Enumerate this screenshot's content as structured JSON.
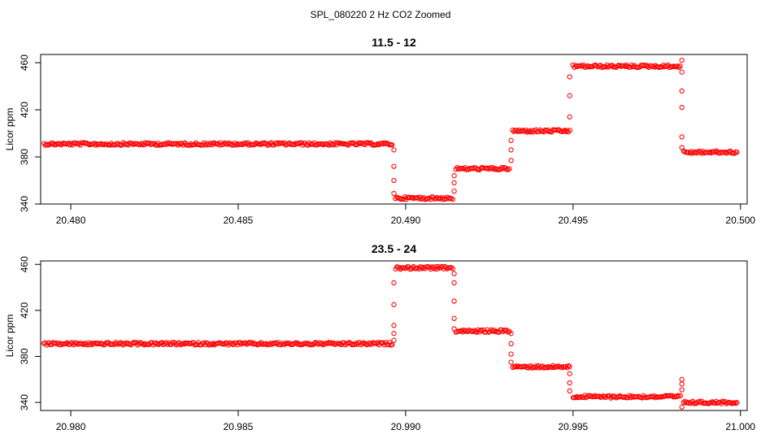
{
  "supertitle": "SPL_080220  2 Hz CO2 Zoomed",
  "chart_data": [
    {
      "type": "scatter",
      "title": "11.5 - 12",
      "xlabel": "",
      "ylabel": "Licor ppm",
      "xlim": [
        20.4791,
        20.5002
      ],
      "ylim": [
        340,
        467
      ],
      "xticks": [
        20.48,
        20.485,
        20.49,
        20.495,
        20.5
      ],
      "xtick_labels": [
        "20.480",
        "20.485",
        "20.490",
        "20.495",
        "20.500"
      ],
      "yticks": [
        340,
        380,
        420,
        460
      ],
      "ytick_labels": [
        "340",
        "380",
        "420",
        "460"
      ],
      "grid": false,
      "color": "#ff0000",
      "marker": "open-circle",
      "series": [
        {
          "levels": [
            {
              "x_start": 20.4792,
              "x_end": 20.4896,
              "y": 391
            },
            {
              "x_start": 20.4897,
              "x_end": 20.4914,
              "y": 345
            },
            {
              "x_start": 20.4915,
              "x_end": 20.4931,
              "y": 370
            },
            {
              "x_start": 20.4932,
              "x_end": 20.4949,
              "y": 402
            },
            {
              "x_start": 20.495,
              "x_end": 20.4982,
              "y": 457
            },
            {
              "x_start": 20.4983,
              "x_end": 20.4999,
              "y": 384
            }
          ],
          "transitions": [
            {
              "x": 20.48965,
              "y": [
                386,
                372,
                360,
                349
              ]
            },
            {
              "x": 20.49145,
              "y": [
                351,
                358,
                364
              ]
            },
            {
              "x": 20.49315,
              "y": [
                377,
                386,
                394
              ]
            },
            {
              "x": 20.4949,
              "y": [
                414,
                432,
                448
              ]
            },
            {
              "x": 20.49825,
              "y": [
                462,
                452,
                436,
                422,
                397,
                388
              ]
            }
          ]
        }
      ]
    },
    {
      "type": "scatter",
      "title": "23.5 - 24",
      "xlabel": "",
      "ylabel": "Licor ppm",
      "xlim": [
        20.9791,
        21.0002
      ],
      "ylim": [
        333,
        463
      ],
      "xticks": [
        20.98,
        20.985,
        20.99,
        20.995,
        21.0
      ],
      "xtick_labels": [
        "20.980",
        "20.985",
        "20.990",
        "20.995",
        "21.000"
      ],
      "yticks": [
        340,
        380,
        420,
        460
      ],
      "ytick_labels": [
        "340",
        "380",
        "420",
        "460"
      ],
      "grid": false,
      "color": "#ff0000",
      "marker": "open-circle",
      "series": [
        {
          "levels": [
            {
              "x_start": 20.9792,
              "x_end": 20.9896,
              "y": 391
            },
            {
              "x_start": 20.9897,
              "x_end": 20.9914,
              "y": 457
            },
            {
              "x_start": 20.9915,
              "x_end": 20.9931,
              "y": 402
            },
            {
              "x_start": 20.9932,
              "x_end": 20.9949,
              "y": 371
            },
            {
              "x_start": 20.995,
              "x_end": 20.9982,
              "y": 345
            },
            {
              "x_start": 20.9983,
              "x_end": 20.9999,
              "y": 340
            }
          ],
          "transitions": [
            {
              "x": 20.98965,
              "y": [
                394,
                400,
                407,
                425,
                444
              ]
            },
            {
              "x": 20.99145,
              "y": [
                452,
                444,
                428,
                413,
                404
              ]
            },
            {
              "x": 20.99315,
              "y": [
                400,
                391,
                382,
                375
              ]
            },
            {
              "x": 20.9949,
              "y": [
                365,
                357,
                350
              ]
            },
            {
              "x": 20.99825,
              "y": [
                360,
                356,
                351,
                336
              ]
            }
          ]
        }
      ]
    }
  ]
}
